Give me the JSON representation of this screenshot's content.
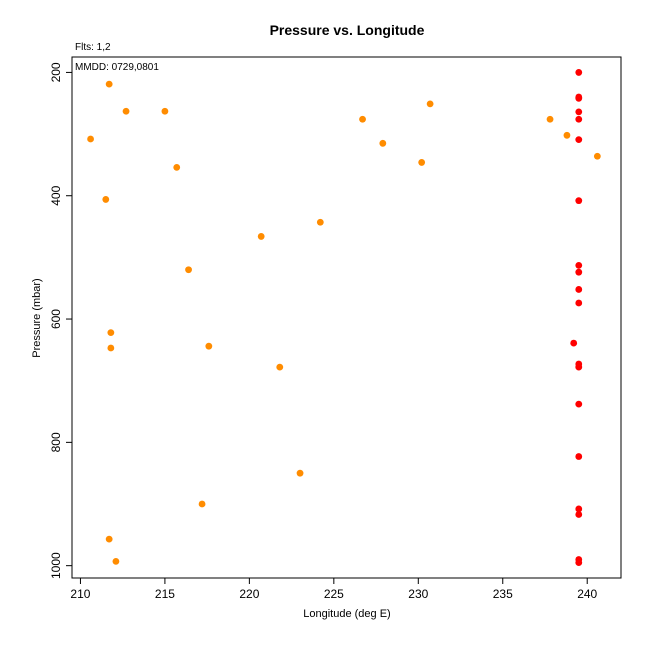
{
  "chart_data": {
    "type": "scatter",
    "title": "Pressure vs. Longitude",
    "subtitle": "Flts: 1,2",
    "annotation": "MMDD: 0729,0801",
    "xlabel": "Longitude (deg E)",
    "ylabel": "Pressure (mbar)",
    "xlim": [
      209.5,
      242
    ],
    "ylim": [
      1020,
      175
    ],
    "y_inverted": true,
    "x_ticks": [
      210,
      215,
      220,
      225,
      230,
      235,
      240
    ],
    "y_ticks": [
      200,
      400,
      600,
      800,
      1000
    ],
    "grid": false,
    "series": [
      {
        "color": "#ff8c00",
        "points": [
          {
            "x": 211.7,
            "y": 219
          },
          {
            "x": 212.7,
            "y": 263
          },
          {
            "x": 215.0,
            "y": 263
          },
          {
            "x": 210.6,
            "y": 308
          },
          {
            "x": 215.7,
            "y": 354
          },
          {
            "x": 211.5,
            "y": 406
          },
          {
            "x": 220.7,
            "y": 466
          },
          {
            "x": 224.2,
            "y": 443
          },
          {
            "x": 216.4,
            "y": 520
          },
          {
            "x": 211.8,
            "y": 622
          },
          {
            "x": 211.8,
            "y": 647
          },
          {
            "x": 217.6,
            "y": 644
          },
          {
            "x": 221.8,
            "y": 678
          },
          {
            "x": 223.0,
            "y": 850
          },
          {
            "x": 217.2,
            "y": 900
          },
          {
            "x": 211.7,
            "y": 957
          },
          {
            "x": 212.1,
            "y": 993
          },
          {
            "x": 226.7,
            "y": 276
          },
          {
            "x": 227.9,
            "y": 315
          },
          {
            "x": 230.2,
            "y": 346
          },
          {
            "x": 230.7,
            "y": 251
          },
          {
            "x": 237.8,
            "y": 276
          },
          {
            "x": 238.8,
            "y": 302
          },
          {
            "x": 240.6,
            "y": 336
          }
        ]
      },
      {
        "color": "#ff0000",
        "points": [
          {
            "x": 239.5,
            "y": 200
          },
          {
            "x": 239.5,
            "y": 240
          },
          {
            "x": 239.5,
            "y": 242
          },
          {
            "x": 239.5,
            "y": 264
          },
          {
            "x": 239.5,
            "y": 276
          },
          {
            "x": 239.5,
            "y": 309
          },
          {
            "x": 239.5,
            "y": 408
          },
          {
            "x": 239.5,
            "y": 513
          },
          {
            "x": 239.5,
            "y": 524
          },
          {
            "x": 239.5,
            "y": 552
          },
          {
            "x": 239.5,
            "y": 574
          },
          {
            "x": 239.2,
            "y": 639
          },
          {
            "x": 239.5,
            "y": 673
          },
          {
            "x": 239.5,
            "y": 678
          },
          {
            "x": 239.5,
            "y": 738
          },
          {
            "x": 239.5,
            "y": 823
          },
          {
            "x": 239.5,
            "y": 908
          },
          {
            "x": 239.5,
            "y": 917
          },
          {
            "x": 239.5,
            "y": 990
          },
          {
            "x": 239.5,
            "y": 995
          }
        ]
      }
    ]
  }
}
